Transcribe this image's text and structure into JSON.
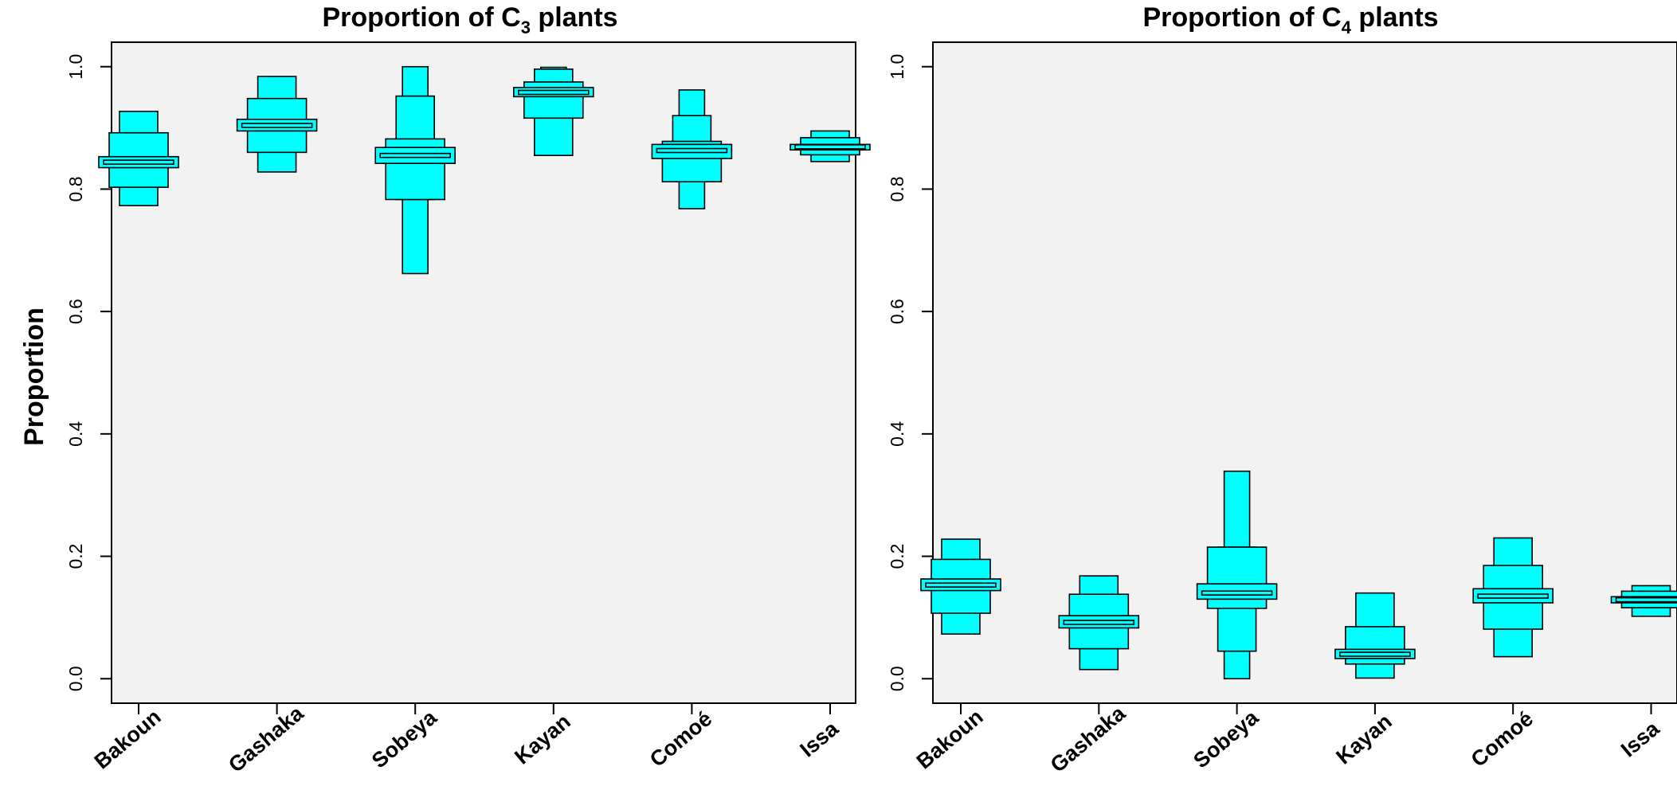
{
  "figure": {
    "ylabel": "Proportion",
    "fill_color": "#00ffff",
    "panel_background": "#f2f2f2"
  },
  "chart_data": [
    {
      "type": "letter-value",
      "title": "Proportion of C",
      "title_subscript": "3",
      "title_suffix": " plants",
      "ylim": [
        -0.04,
        1.04
      ],
      "yticks": [
        "0.0",
        "0.2",
        "0.4",
        "0.6",
        "0.8",
        "1.0"
      ],
      "categories": [
        "Bakoun",
        "Gashaka",
        "Sobeya",
        "Kayan",
        "Comoé",
        "Issa"
      ],
      "boxes": [
        {
          "median": 0.844,
          "levels": [
            [
              0.835,
              0.853
            ],
            [
              0.803,
              0.892
            ],
            [
              0.773,
              0.927
            ]
          ]
        },
        {
          "median": 0.904,
          "levels": [
            [
              0.895,
              0.914
            ],
            [
              0.86,
              0.948
            ],
            [
              0.828,
              0.984
            ]
          ]
        },
        {
          "median": 0.855,
          "levels": [
            [
              0.842,
              0.868
            ],
            [
              0.783,
              0.882
            ],
            [
              0.783,
              0.952
            ],
            [
              0.662,
              1.0
            ]
          ]
        },
        {
          "median": 0.958,
          "levels": [
            [
              0.951,
              0.966
            ],
            [
              0.916,
              0.975
            ],
            [
              0.855,
              0.996
            ],
            [
              0.855,
              0.999
            ]
          ]
        },
        {
          "median": 0.863,
          "levels": [
            [
              0.85,
              0.873
            ],
            [
              0.812,
              0.878
            ],
            [
              0.812,
              0.92
            ],
            [
              0.768,
              0.962
            ]
          ]
        },
        {
          "median": 0.869,
          "levels": [
            [
              0.864,
              0.873
            ],
            [
              0.856,
              0.884
            ],
            [
              0.845,
              0.895
            ]
          ]
        }
      ]
    },
    {
      "type": "letter-value",
      "title": "Proportion of C",
      "title_subscript": "4",
      "title_suffix": " plants",
      "ylim": [
        -0.04,
        1.04
      ],
      "yticks": [
        "0.0",
        "0.2",
        "0.4",
        "0.6",
        "0.8",
        "1.0"
      ],
      "categories": [
        "Bakoun",
        "Gashaka",
        "Sobeya",
        "Kayan",
        "Comoé",
        "Issa"
      ],
      "boxes": [
        {
          "median": 0.153,
          "levels": [
            [
              0.144,
              0.163
            ],
            [
              0.107,
              0.195
            ],
            [
              0.073,
              0.228
            ]
          ]
        },
        {
          "median": 0.092,
          "levels": [
            [
              0.083,
              0.103
            ],
            [
              0.049,
              0.138
            ],
            [
              0.015,
              0.168
            ]
          ]
        },
        {
          "median": 0.14,
          "levels": [
            [
              0.13,
              0.155
            ],
            [
              0.115,
              0.215
            ],
            [
              0.045,
              0.215
            ],
            [
              0.0,
              0.339
            ]
          ]
        },
        {
          "median": 0.04,
          "levels": [
            [
              0.033,
              0.048
            ],
            [
              0.024,
              0.085
            ],
            [
              0.001,
              0.14
            ]
          ]
        },
        {
          "median": 0.135,
          "levels": [
            [
              0.124,
              0.147
            ],
            [
              0.081,
              0.185
            ],
            [
              0.036,
              0.23
            ]
          ]
        },
        {
          "median": 0.129,
          "levels": [
            [
              0.124,
              0.134
            ],
            [
              0.116,
              0.143
            ],
            [
              0.102,
              0.152
            ]
          ]
        }
      ]
    }
  ]
}
